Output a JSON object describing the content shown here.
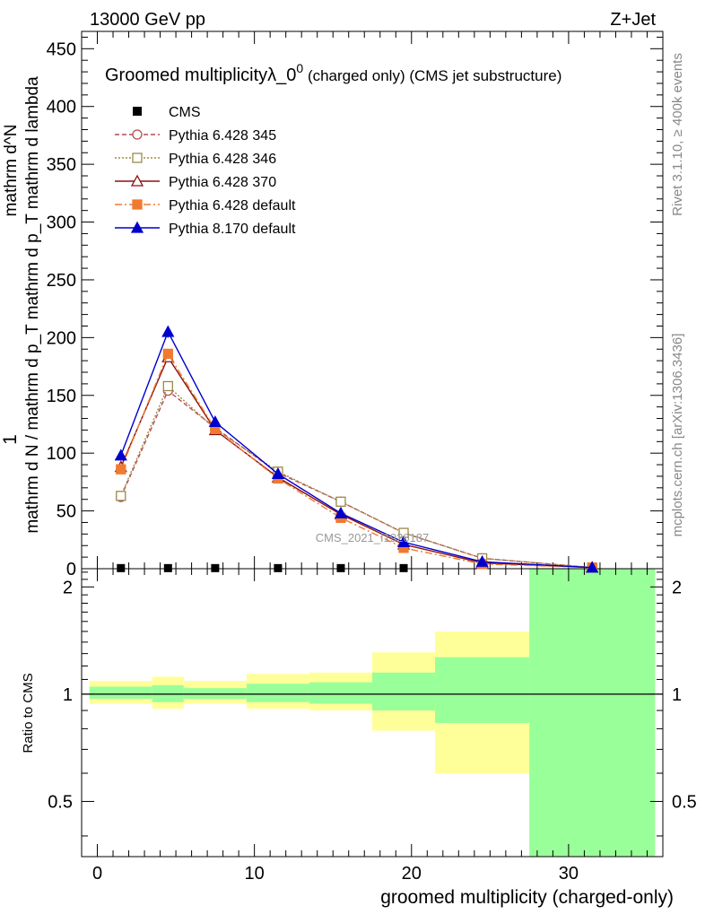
{
  "header": {
    "left": "13000 GeV pp",
    "right": "Z+Jet"
  },
  "title": {
    "main": "Groomed multiplicityλ_0",
    "sup": "0",
    "sub": " (charged only) (CMS jet substructure)"
  },
  "side_labels": {
    "rivet": "Rivet 3.1.10, ≥ 400k events",
    "mcplots": "mcplots.cern.ch [arXiv:1306.3436]"
  },
  "watermark": "CMS_2021_I1920187",
  "colors": {
    "cms": "#000000",
    "py345": "#b84a4a",
    "py346": "#9b8a4a",
    "py370": "#8b1010",
    "pydefault": "#f07a30",
    "py8": "#0000cc",
    "band_inner": "#99ff99",
    "band_outer": "#ffff99"
  },
  "chart_data": [
    {
      "type": "line",
      "panel": "main",
      "ylabel_top": "1",
      "ylabel": "mathrm d N / mathrm d p_T mathrm d p_T mathrm d^N mathrm d lambda",
      "ylabel_bottom": "mathrm d N / mathrm d p_T mathrm d p_T mathrm d lambda",
      "ylabel_right": "mathrm d^N",
      "ylim": [
        0,
        465
      ],
      "yticks": [
        0,
        50,
        100,
        150,
        200,
        250,
        300,
        350,
        400,
        450
      ],
      "xlim": [
        -1,
        36
      ],
      "x": [
        1.5,
        4.5,
        7.5,
        11.5,
        15.5,
        19.5,
        24.5,
        31.5
      ],
      "series": [
        {
          "name": "CMS",
          "key": "cms",
          "values": [
            0.5,
            0.5,
            0.5,
            0.5,
            0.5,
            0.5,
            0,
            0
          ]
        },
        {
          "name": "Pythia 6.428 345",
          "key": "py345",
          "values": [
            62,
            154,
            122,
            83,
            58,
            31,
            9,
            1
          ]
        },
        {
          "name": "Pythia 6.428 346",
          "key": "py346",
          "values": [
            63,
            158,
            121,
            84,
            58,
            31,
            9,
            1
          ]
        },
        {
          "name": "Pythia 6.428 370",
          "key": "py370",
          "values": [
            88,
            183,
            120,
            79,
            47,
            21,
            5,
            1
          ]
        },
        {
          "name": "Pythia 6.428 default",
          "key": "pydefault",
          "values": [
            86,
            186,
            121,
            78,
            44,
            18,
            4,
            1
          ]
        },
        {
          "name": "Pythia 8.170 default",
          "key": "py8",
          "values": [
            98,
            205,
            127,
            82,
            48,
            23,
            6,
            1
          ]
        }
      ],
      "errors": {
        "py8": [
          0,
          5,
          0,
          0,
          0,
          0,
          0,
          0
        ]
      }
    },
    {
      "type": "area",
      "panel": "ratio",
      "ylabel": "Ratio to CMS",
      "xlabel": "groomed multiplicity (charged-only)",
      "ylim": [
        0.35,
        2.25
      ],
      "yticks": [
        0.5,
        1,
        2
      ],
      "ytick_labels": [
        "0.5",
        "1",
        "2"
      ],
      "xticks": [
        0,
        10,
        20,
        30
      ],
      "xtick_labels": [
        "0",
        "10",
        "20",
        "30"
      ],
      "bins": [
        {
          "lo": -0.5,
          "hi": 3.5,
          "inner": [
            0.97,
            1.05
          ],
          "outer": [
            0.94,
            1.09
          ]
        },
        {
          "lo": 3.5,
          "hi": 5.5,
          "inner": [
            0.95,
            1.06
          ],
          "outer": [
            0.91,
            1.12
          ]
        },
        {
          "lo": 5.5,
          "hi": 9.5,
          "inner": [
            0.97,
            1.04
          ],
          "outer": [
            0.94,
            1.09
          ]
        },
        {
          "lo": 9.5,
          "hi": 13.5,
          "inner": [
            0.95,
            1.07
          ],
          "outer": [
            0.91,
            1.14
          ]
        },
        {
          "lo": 13.5,
          "hi": 17.5,
          "inner": [
            0.94,
            1.08
          ],
          "outer": [
            0.9,
            1.15
          ]
        },
        {
          "lo": 17.5,
          "hi": 21.5,
          "inner": [
            0.9,
            1.15
          ],
          "outer": [
            0.79,
            1.31
          ]
        },
        {
          "lo": 21.5,
          "hi": 27.5,
          "inner": [
            0.83,
            1.27
          ],
          "outer": [
            0.6,
            1.5
          ]
        },
        {
          "lo": 27.5,
          "hi": 35.5,
          "inner": [
            0.35,
            2.25
          ],
          "outer": [
            0.35,
            2.25
          ]
        }
      ]
    }
  ]
}
